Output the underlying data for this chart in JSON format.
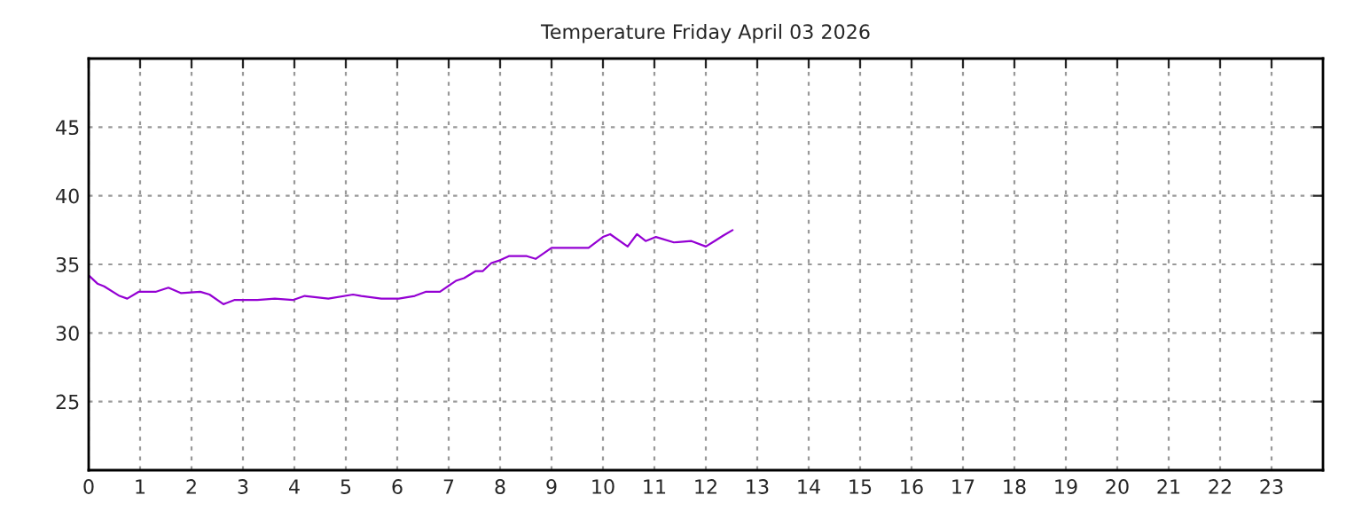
{
  "chart_data": {
    "type": "line",
    "title": "Temperature Friday April 03 2026",
    "x": [
      0,
      0.17,
      0.3,
      0.6,
      0.75,
      0.97,
      1.3,
      1.55,
      1.8,
      2.17,
      2.35,
      2.62,
      2.83,
      3.28,
      3.62,
      3.97,
      4.2,
      4.66,
      5.14,
      5.3,
      5.69,
      6.03,
      6.34,
      6.55,
      6.83,
      7.14,
      7.3,
      7.52,
      7.66,
      7.83,
      8.0,
      8.17,
      8.52,
      8.69,
      9.0,
      9.72,
      10.0,
      10.14,
      10.48,
      10.66,
      10.83,
      11.03,
      11.38,
      11.72,
      12.0,
      12.17,
      12.34,
      12.52
    ],
    "series": [
      {
        "color": "#9400d3",
        "values": [
          34.2,
          33.6,
          33.4,
          32.7,
          32.5,
          33.0,
          33.0,
          33.3,
          32.9,
          33.0,
          32.8,
          32.1,
          32.4,
          32.4,
          32.5,
          32.4,
          32.7,
          32.5,
          32.8,
          32.7,
          32.5,
          32.5,
          32.7,
          33.0,
          33.0,
          33.8,
          34.0,
          34.5,
          34.5,
          35.1,
          35.3,
          35.6,
          35.6,
          35.4,
          36.2,
          36.2,
          37.0,
          37.2,
          36.3,
          37.2,
          36.7,
          37.0,
          36.6,
          36.7,
          36.3,
          36.7,
          37.1,
          37.5
        ]
      }
    ],
    "xlim": [
      0,
      24
    ],
    "xticks": [
      0,
      1,
      2,
      3,
      4,
      5,
      6,
      7,
      8,
      9,
      10,
      11,
      12,
      13,
      14,
      15,
      16,
      17,
      18,
      19,
      20,
      21,
      22,
      23
    ],
    "ylim": [
      20,
      50
    ],
    "yticks": [
      25,
      30,
      35,
      40,
      45
    ],
    "grid": true,
    "marker": "none",
    "line_style": "solid"
  }
}
